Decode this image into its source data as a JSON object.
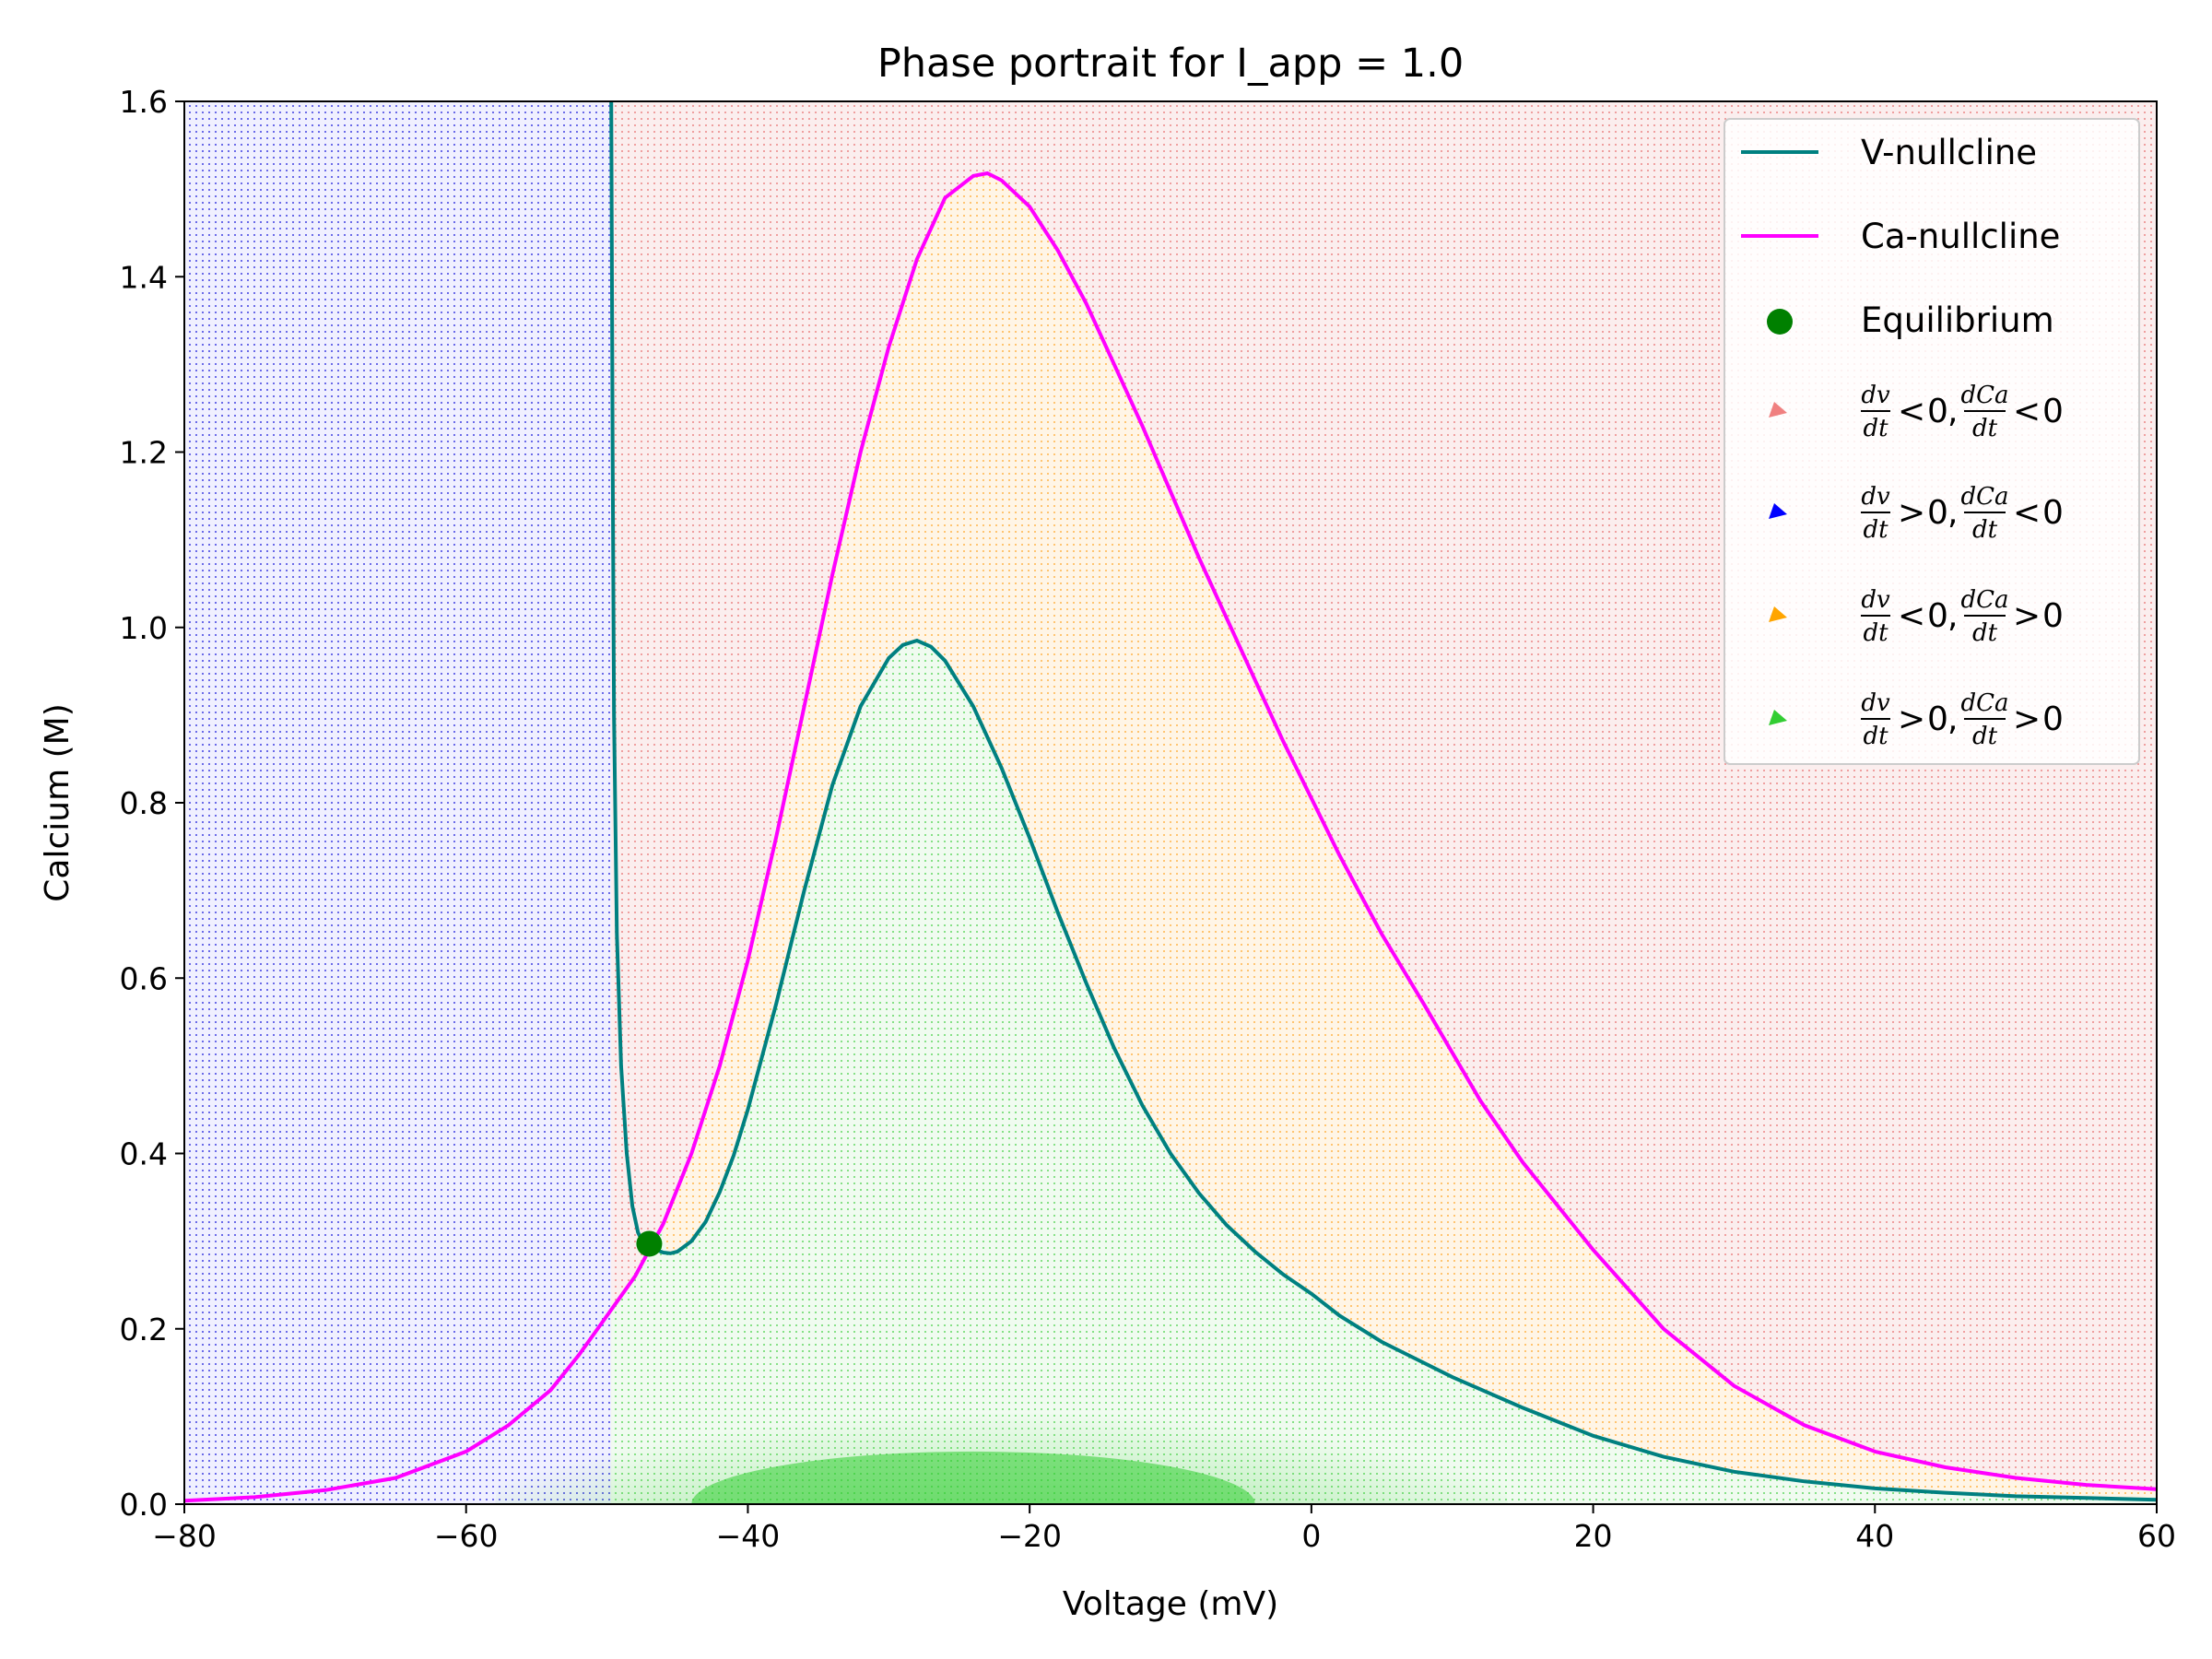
{
  "chart_data": {
    "type": "line",
    "title": "Phase portrait for I_app = 1.0",
    "xlabel": "Voltage (mV)",
    "ylabel": "Calcium (M)",
    "xlim": [
      -80,
      60
    ],
    "ylim": [
      0,
      1.6
    ],
    "x_ticks": [
      -80,
      -60,
      -40,
      -20,
      0,
      20,
      40,
      60
    ],
    "x_tick_labels": [
      "−80",
      "−60",
      "−40",
      "−20",
      "0",
      "20",
      "40",
      "60"
    ],
    "y_ticks": [
      0,
      0.2,
      0.4,
      0.6,
      0.8,
      1.0,
      1.2,
      1.4,
      1.6
    ],
    "y_tick_labels": [
      "0.0",
      "0.2",
      "0.4",
      "0.6",
      "0.8",
      "1.0",
      "1.2",
      "1.4",
      "1.6"
    ],
    "grid": false,
    "legend_position": "top-right",
    "series": [
      {
        "name": "V-nullcline",
        "color": "#008080",
        "x": [
          -49.7,
          -49.6,
          -49.5,
          -49.3,
          -49.0,
          -48.6,
          -48.2,
          -47.8,
          -47.5,
          -47.0,
          -46.5,
          -46.0,
          -45.5,
          -45.0,
          -44.0,
          -43.0,
          -42.0,
          -41.0,
          -40.0,
          -38.0,
          -36.0,
          -34.0,
          -32.0,
          -30.0,
          -29.0,
          -28.0,
          -27.0,
          -26.0,
          -24.0,
          -22.0,
          -20.0,
          -18.0,
          -16.0,
          -14.0,
          -12.0,
          -10.0,
          -8.0,
          -6.0,
          -4.0,
          -2.0,
          0.0,
          2.0,
          5.0,
          10.0,
          15.0,
          20.0,
          25.0,
          30.0,
          35.0,
          40.0,
          45.0,
          50.0,
          55.0,
          60.0
        ],
        "y": [
          1.6,
          1.2,
          0.9,
          0.65,
          0.5,
          0.4,
          0.34,
          0.31,
          0.3,
          0.295,
          0.29,
          0.287,
          0.286,
          0.288,
          0.3,
          0.322,
          0.356,
          0.398,
          0.45,
          0.57,
          0.7,
          0.82,
          0.91,
          0.965,
          0.98,
          0.985,
          0.978,
          0.962,
          0.91,
          0.84,
          0.76,
          0.675,
          0.595,
          0.52,
          0.455,
          0.4,
          0.355,
          0.318,
          0.288,
          0.262,
          0.24,
          0.215,
          0.185,
          0.145,
          0.11,
          0.078,
          0.054,
          0.037,
          0.026,
          0.018,
          0.013,
          0.009,
          0.007,
          0.005
        ]
      },
      {
        "name": "Ca-nullcline",
        "color": "#ff00ff",
        "x": [
          -80,
          -75,
          -70,
          -65,
          -60,
          -57,
          -54,
          -52,
          -50,
          -48,
          -46,
          -44,
          -42,
          -40,
          -38,
          -36,
          -34,
          -32,
          -30,
          -28,
          -26,
          -24,
          -23,
          -22,
          -20,
          -18,
          -16,
          -14,
          -12,
          -10,
          -8,
          -6,
          -4,
          -2,
          0,
          2,
          5,
          8,
          10,
          12,
          15,
          20,
          25,
          30,
          35,
          40,
          45,
          50,
          55,
          60
        ],
        "y": [
          0.004,
          0.008,
          0.016,
          0.03,
          0.06,
          0.09,
          0.13,
          0.17,
          0.215,
          0.26,
          0.32,
          0.4,
          0.5,
          0.62,
          0.76,
          0.91,
          1.06,
          1.2,
          1.32,
          1.42,
          1.49,
          1.515,
          1.518,
          1.51,
          1.48,
          1.43,
          1.37,
          1.3,
          1.23,
          1.155,
          1.08,
          1.01,
          0.94,
          0.87,
          0.805,
          0.74,
          0.65,
          0.57,
          0.515,
          0.46,
          0.39,
          0.29,
          0.2,
          0.135,
          0.09,
          0.06,
          0.042,
          0.03,
          0.022,
          0.017
        ]
      }
    ],
    "equilibrium": {
      "name": "Equilibrium",
      "x": -47.0,
      "y": 0.297,
      "color": "#008000"
    },
    "quiver_legend": [
      {
        "num1": "dv",
        "den1": "dt",
        "op1": "<",
        "val1": "0",
        "num2": "dCa",
        "den2": "dt",
        "op2": "<",
        "val2": "0",
        "color": "#f08080"
      },
      {
        "num1": "dv",
        "den1": "dt",
        "op1": ">",
        "val1": "0",
        "num2": "dCa",
        "den2": "dt",
        "op2": "<",
        "val2": "0",
        "color": "#0000ff"
      },
      {
        "num1": "dv",
        "den1": "dt",
        "op1": "<",
        "val1": "0",
        "num2": "dCa",
        "den2": "dt",
        "op2": ">",
        "val2": "0",
        "color": "#ffa500"
      },
      {
        "num1": "dv",
        "den1": "dt",
        "op1": ">",
        "val1": "0",
        "num2": "dCa",
        "den2": "dt",
        "op2": ">",
        "val2": "0",
        "color": "#32cd32"
      }
    ],
    "region_colors": {
      "dv_neg_dca_neg": "#f08080",
      "dv_pos_dca_neg": "#0000ff",
      "dv_neg_dca_pos": "#ffa500",
      "dv_pos_dca_pos": "#32cd32"
    }
  }
}
